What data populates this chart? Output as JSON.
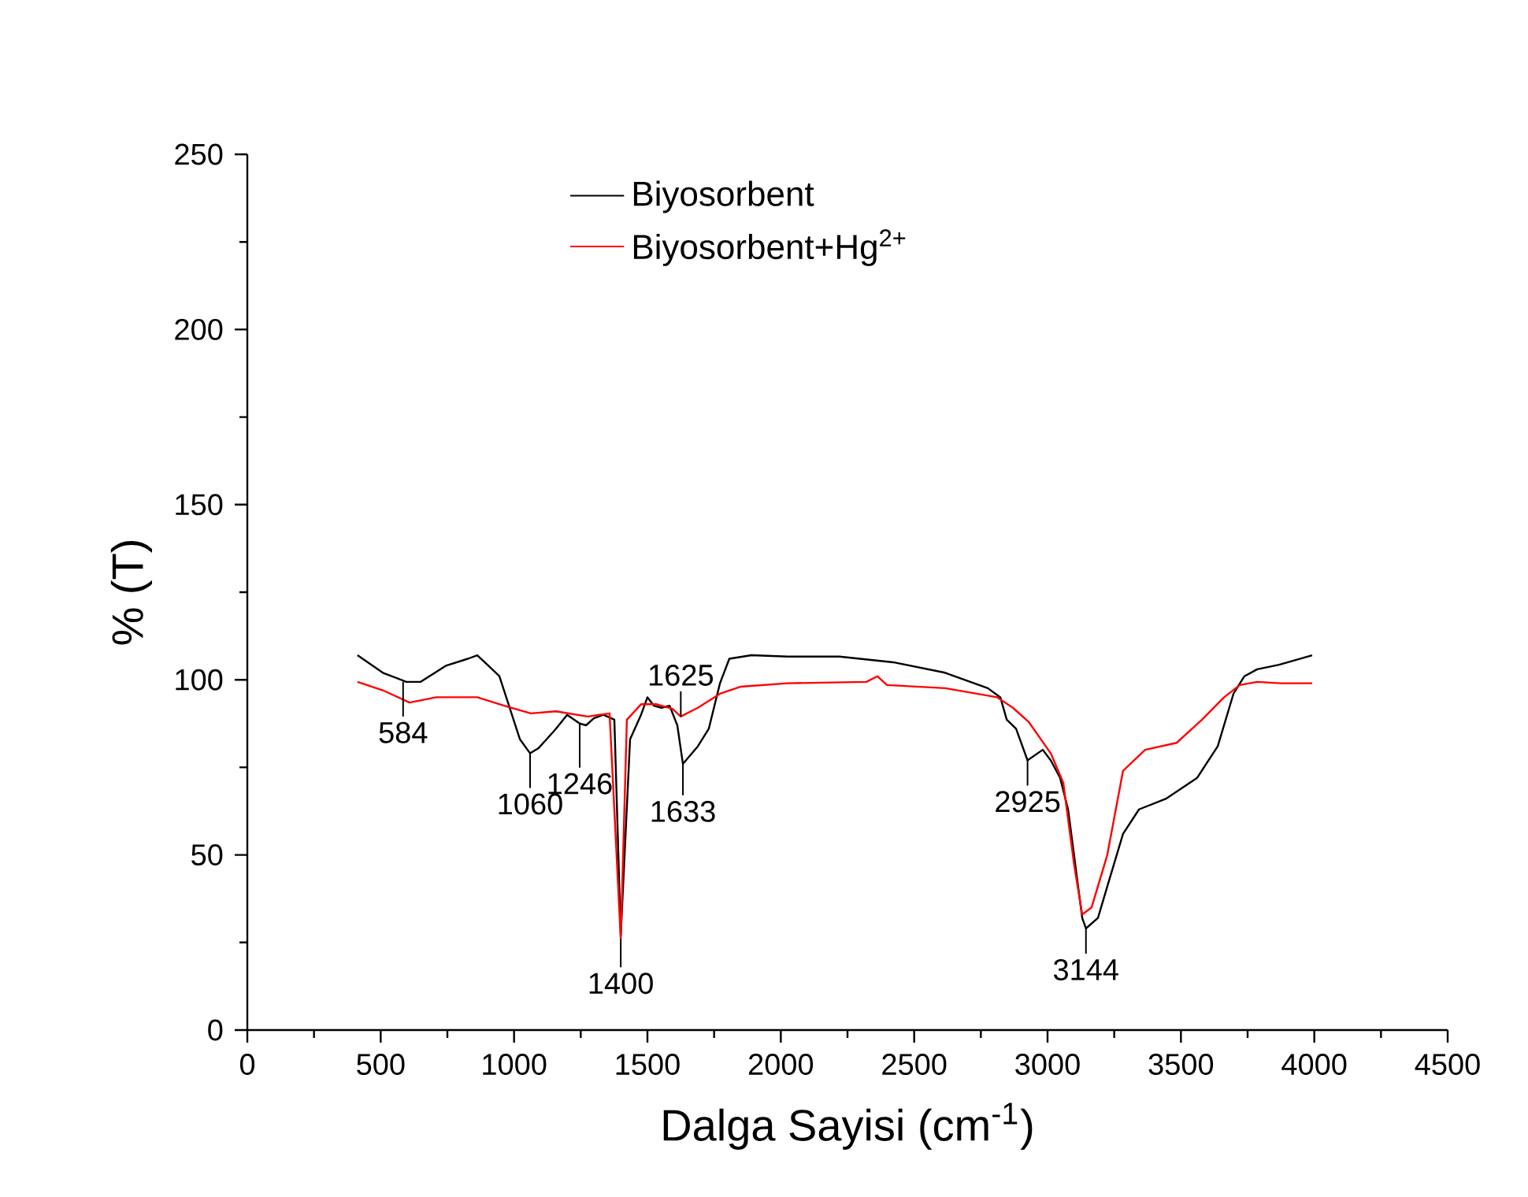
{
  "chart_data": {
    "type": "line",
    "xlabel": "Dalga Sayisi (cm$^{-1}$)",
    "ylabel": "% (T)",
    "xlim": [
      0,
      4500
    ],
    "xticks": [
      0,
      500,
      1000,
      1500,
      2000,
      2500,
      3000,
      3500,
      4000,
      4500
    ],
    "ylim": [
      0,
      250
    ],
    "yticks": [
      0,
      50,
      100,
      150,
      200,
      250
    ],
    "grid": false,
    "legend": "top",
    "line_style": "solid",
    "marker": "none",
    "series": [
      {
        "name": "Biyosorbent",
        "color": "#000000",
        "x": [
          413,
          508,
          596,
          650,
          744,
          827,
          862,
          904,
          945,
          992,
          1022,
          1060,
          1092,
          1122,
          1157,
          1199,
          1246,
          1270,
          1299,
          1335,
          1376,
          1400,
          1435,
          1476,
          1500,
          1524,
          1553,
          1583,
          1612,
          1633,
          1689,
          1730,
          1772,
          1807,
          1890,
          2026,
          2220,
          2421,
          2616,
          2776,
          2823,
          2847,
          2882,
          2925,
          2982,
          3012,
          3047,
          3077,
          3130,
          3144,
          3189,
          3224,
          3283,
          3343,
          3443,
          3561,
          3638,
          3697,
          3738,
          3786,
          3868,
          3992
        ],
        "values": [
          107,
          102,
          99.4,
          99.4,
          104,
          106,
          107,
          104,
          101,
          90,
          83,
          79,
          80.5,
          83,
          86,
          90,
          87.5,
          87,
          89,
          90,
          88.6,
          27,
          83,
          90,
          95,
          92.6,
          92,
          92.6,
          87,
          76,
          81,
          86,
          99,
          106,
          107,
          106.6,
          106.6,
          105,
          102,
          97.6,
          95,
          88.6,
          86,
          77,
          80,
          77,
          72,
          63,
          32,
          29,
          32,
          41,
          56,
          63,
          66,
          72,
          81,
          96,
          101,
          103,
          104.3,
          107
        ]
      },
      {
        "name": "Biyosorbent+Hg$^{2+}$",
        "color": "#ff0000",
        "x": [
          413,
          508,
          608,
          709,
          862,
          963,
          1063,
          1157,
          1276,
          1358,
          1400,
          1423,
          1476,
          1535,
          1594,
          1625,
          1689,
          1772,
          1848,
          2026,
          2321,
          2362,
          2398,
          2616,
          2811,
          2870,
          2929,
          3012,
          3059,
          3100,
          3130,
          3165,
          3224,
          3283,
          3366,
          3484,
          3579,
          3662,
          3721,
          3786,
          3874,
          3992
        ],
        "values": [
          99.4,
          97,
          93.5,
          95,
          95,
          92.6,
          90.4,
          91,
          89.5,
          90.4,
          26,
          88.6,
          93,
          93,
          91.7,
          89.5,
          92,
          96,
          98,
          99,
          99.4,
          101,
          98.5,
          97.6,
          95,
          92,
          88,
          79,
          70.6,
          47,
          33,
          35,
          50,
          74,
          80,
          82,
          88.6,
          95,
          98.5,
          99.4,
          99,
          99
        ]
      }
    ],
    "annotations": [
      {
        "text": "584",
        "x": 584,
        "y": 99.4
      },
      {
        "text": "1060",
        "x": 1060,
        "y": 79
      },
      {
        "text": "1246",
        "x": 1246,
        "y": 87.5
      },
      {
        "text": "1400",
        "x": 1400,
        "y": 26
      },
      {
        "text": "1625",
        "x": 1625,
        "y": 89.5
      },
      {
        "text": "1633",
        "x": 1633,
        "y": 76
      },
      {
        "text": "2925",
        "x": 2925,
        "y": 77
      },
      {
        "text": "3144",
        "x": 3144,
        "y": 29
      }
    ]
  }
}
